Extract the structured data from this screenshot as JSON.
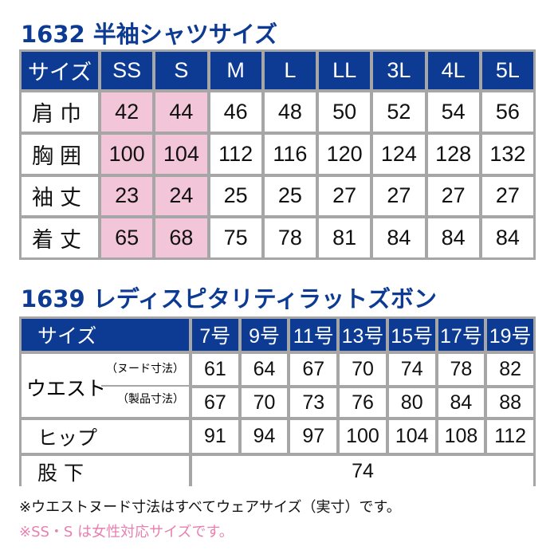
{
  "colors": {
    "header": "#0d3b94",
    "highlight": "#f2c6d8",
    "note_pink": "#e87fb0",
    "border": "#a6a6a6"
  },
  "shirt": {
    "title": "1632 半袖シャツサイズ",
    "header": [
      "サイズ",
      "SS",
      "S",
      "M",
      "L",
      "LL",
      "3L",
      "4L",
      "5L"
    ],
    "rows": [
      {
        "label": "肩巾",
        "values": [
          "42",
          "44",
          "46",
          "48",
          "50",
          "52",
          "54",
          "56"
        ]
      },
      {
        "label": "胸囲",
        "values": [
          "100",
          "104",
          "112",
          "116",
          "120",
          "124",
          "128",
          "132"
        ]
      },
      {
        "label": "袖丈",
        "values": [
          "23",
          "24",
          "25",
          "25",
          "27",
          "27",
          "27",
          "27"
        ]
      },
      {
        "label": "着丈",
        "values": [
          "65",
          "68",
          "75",
          "78",
          "81",
          "84",
          "84",
          "84"
        ]
      }
    ],
    "highlighted_columns": [
      "SS",
      "S"
    ]
  },
  "pants": {
    "title": "1639 レディスピタリティラットズボン",
    "header": [
      "サイズ",
      "7号",
      "9号",
      "11号",
      "13号",
      "15号",
      "17号",
      "19号"
    ],
    "waist_label": "ウエスト",
    "waist_nude_label": "（ヌード寸法）",
    "waist_product_label": "（製品寸法）",
    "waist_nude": [
      "61",
      "64",
      "67",
      "70",
      "74",
      "78",
      "82"
    ],
    "waist_product": [
      "67",
      "70",
      "73",
      "76",
      "80",
      "84",
      "88"
    ],
    "hip_label": "ヒップ",
    "hip": [
      "91",
      "94",
      "97",
      "100",
      "104",
      "108",
      "112"
    ],
    "inseam_label": "股下",
    "inseam": "74"
  },
  "notes": [
    "※ウエストヌード寸法はすべてウェアサイズ（実寸）です。",
    "※SS・S は女性対応サイズです。"
  ]
}
